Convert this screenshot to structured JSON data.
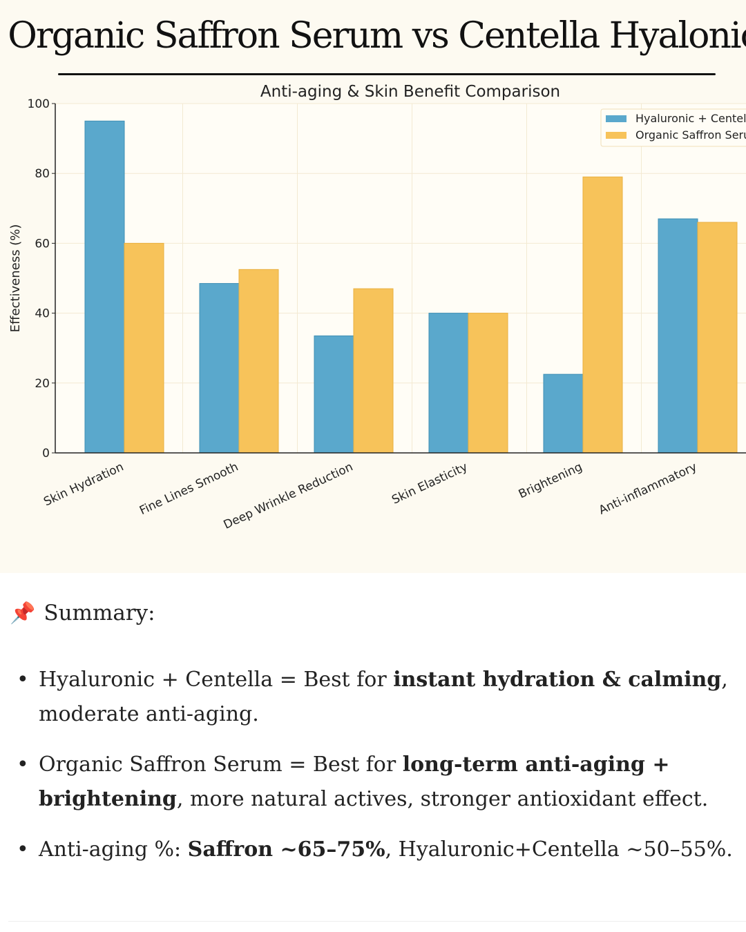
{
  "header": {
    "title": "Organic Saffron Serum vs Centella Hyalonic"
  },
  "chart_data": {
    "type": "bar",
    "title": "Anti-aging & Skin Benefit Comparison",
    "xlabel": "",
    "ylabel": "Effectiveness (%)",
    "ylim": [
      0,
      100
    ],
    "yticks": [
      0,
      20,
      40,
      60,
      80,
      100
    ],
    "grid": true,
    "legend_position": "top-right",
    "categories": [
      "Skin Hydration",
      "Fine Lines Smooth",
      "Deep Wrinkle Reduction",
      "Skin Elasticity",
      "Brightening",
      "Anti-inflammatory"
    ],
    "series": [
      {
        "name": "Hyaluronic + Centel",
        "color": "#5aa8cc",
        "values": [
          95,
          48.5,
          33.5,
          40,
          22.5,
          67
        ]
      },
      {
        "name": "Organic Saffron Seru",
        "color": "#f7c35a",
        "values": [
          60,
          52.5,
          47,
          40,
          79,
          66
        ]
      }
    ]
  },
  "summary": {
    "icon": "pushpin-icon",
    "pin_glyph": "📌",
    "title": "Summary:",
    "bullets": [
      [
        {
          "t": "Hyaluronic + Centella = Best for "
        },
        {
          "t": "instant hydration & calming",
          "b": true
        },
        {
          "t": ", moderate anti-aging."
        }
      ],
      [
        {
          "t": "Organic Saffron Serum = Best for "
        },
        {
          "t": "long-term anti-aging + brightening",
          "b": true
        },
        {
          "t": ", more natural actives, stronger antioxidant effect."
        }
      ],
      [
        {
          "t": "Anti-aging %: "
        },
        {
          "t": "Saffron ~65–75%",
          "b": true
        },
        {
          "t": ", Hyaluronic+Centella ~50–55%."
        }
      ]
    ]
  }
}
